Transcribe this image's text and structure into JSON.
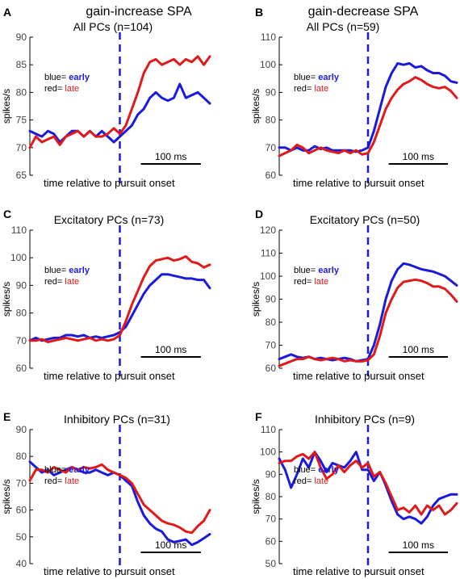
{
  "column_titles": [
    "gain-increase SPA",
    "gain-decrease SPA"
  ],
  "colors": {
    "early": "#1a1adc",
    "late": "#e01a1a",
    "axis": "#000000",
    "onset": "#1a1adc"
  },
  "chart_data": [
    {
      "panel": "A",
      "type": "line",
      "title": "All PCs (n=104)",
      "ylabel": "spikes/s",
      "xlabel": "time relative to pursuit onset",
      "ylim": [
        65,
        90
      ],
      "yticks": [
        65,
        70,
        75,
        80,
        85,
        90
      ],
      "xlim": [
        -300,
        300
      ],
      "scalebar": "100 ms",
      "legend": {
        "blue_prefix": "blue=",
        "blue_word": "early",
        "red_prefix": "red=",
        "red_word": "late"
      },
      "x": [
        -300,
        -280,
        -260,
        -240,
        -220,
        -200,
        -180,
        -160,
        -140,
        -120,
        -100,
        -80,
        -60,
        -40,
        -20,
        0,
        20,
        40,
        60,
        80,
        100,
        120,
        140,
        160,
        180,
        200,
        220,
        240,
        260,
        280,
        300
      ],
      "series": [
        {
          "key": "early",
          "values": [
            73,
            72.5,
            72,
            73,
            72.5,
            71,
            72,
            73,
            73,
            72,
            73,
            72,
            73,
            72,
            71,
            72,
            73,
            74,
            76,
            77,
            79,
            80,
            79,
            78.5,
            79,
            81.5,
            79,
            79.5,
            80,
            79,
            78
          ]
        },
        {
          "key": "late",
          "values": [
            70,
            72,
            71,
            71.5,
            72,
            70.5,
            72,
            72.5,
            73,
            72,
            73,
            72,
            72,
            72.5,
            73.5,
            72.5,
            74,
            77,
            80,
            83.5,
            85.5,
            86,
            85,
            85.5,
            86,
            85,
            86,
            85.5,
            86.5,
            85,
            86.5
          ]
        }
      ]
    },
    {
      "panel": "B",
      "type": "line",
      "title": "All PCs (n=59)",
      "ylabel": "spikes/s",
      "xlabel": "time relative to pursuit onset",
      "ylim": [
        60,
        110
      ],
      "yticks": [
        60,
        70,
        80,
        90,
        100,
        110
      ],
      "xlim": [
        -300,
        300
      ],
      "scalebar": "100 ms",
      "legend": {
        "blue_prefix": "blue=",
        "blue_word": "early",
        "red_prefix": "red=",
        "red_word": "late"
      },
      "x": [
        -300,
        -280,
        -260,
        -240,
        -220,
        -200,
        -180,
        -160,
        -140,
        -120,
        -100,
        -80,
        -60,
        -40,
        -20,
        0,
        20,
        40,
        60,
        80,
        100,
        120,
        140,
        160,
        180,
        200,
        220,
        240,
        260,
        280,
        300
      ],
      "series": [
        {
          "key": "early",
          "values": [
            70,
            70,
            69,
            70,
            69,
            69,
            70.5,
            69.5,
            70,
            69,
            69,
            69,
            69,
            68.5,
            69,
            70,
            76,
            84,
            92,
            97,
            100.5,
            100,
            100.5,
            99,
            99.5,
            98,
            97,
            97,
            96,
            94,
            93.5
          ]
        },
        {
          "key": "late",
          "values": [
            67,
            68,
            69,
            71,
            70,
            68,
            69,
            70,
            69,
            68.5,
            68,
            69,
            68,
            69,
            67.5,
            68,
            72,
            78,
            84,
            88,
            91,
            93,
            94,
            95.5,
            94.5,
            93,
            92,
            91.5,
            92,
            90.5,
            88
          ]
        }
      ]
    },
    {
      "panel": "C",
      "type": "line",
      "title": "Excitatory PCs (n=73)",
      "ylabel": "spikes/s",
      "xlabel": "time relative to pursuit onset",
      "ylim": [
        60,
        110
      ],
      "yticks": [
        60,
        70,
        80,
        90,
        100,
        110
      ],
      "xlim": [
        -300,
        300
      ],
      "scalebar": "100 ms",
      "legend": {
        "blue_prefix": "blue=",
        "blue_word": "early",
        "red_prefix": "red=",
        "red_word": "late"
      },
      "x": [
        -300,
        -280,
        -260,
        -240,
        -220,
        -200,
        -180,
        -160,
        -140,
        -120,
        -100,
        -80,
        -60,
        -40,
        -20,
        0,
        20,
        40,
        60,
        80,
        100,
        120,
        140,
        160,
        180,
        200,
        220,
        240,
        260,
        280,
        300
      ],
      "series": [
        {
          "key": "early",
          "values": [
            70,
            71,
            70,
            70.5,
            71,
            71,
            72,
            72,
            71.5,
            72,
            71,
            71.5,
            71,
            71.5,
            72,
            73,
            75,
            79,
            83,
            87,
            90,
            92,
            94,
            94,
            93.5,
            93,
            92.5,
            92.5,
            92,
            92,
            89
          ]
        },
        {
          "key": "late",
          "values": [
            70,
            70,
            70.5,
            69.5,
            70,
            70.5,
            71,
            70.5,
            70,
            70.5,
            71,
            70,
            70.5,
            70,
            70.5,
            72,
            77,
            83,
            88,
            93,
            97,
            99,
            99.5,
            100,
            99,
            99.5,
            100.5,
            98.5,
            98,
            96.5,
            97.5
          ]
        }
      ]
    },
    {
      "panel": "D",
      "type": "line",
      "title": "Excitatory PCs (n=50)",
      "ylabel": "spikes/s",
      "xlabel": "time relative to pursuit onset",
      "ylim": [
        60,
        120
      ],
      "yticks": [
        60,
        70,
        80,
        90,
        100,
        110,
        120
      ],
      "xlim": [
        -300,
        300
      ],
      "scalebar": "100 ms",
      "legend": {
        "blue_prefix": "blue=",
        "blue_word": "early",
        "red_prefix": "red=",
        "red_word": "late"
      },
      "x": [
        -300,
        -280,
        -260,
        -240,
        -220,
        -200,
        -180,
        -160,
        -140,
        -120,
        -100,
        -80,
        -60,
        -40,
        -20,
        0,
        20,
        40,
        60,
        80,
        100,
        120,
        140,
        160,
        180,
        200,
        220,
        240,
        260,
        280,
        300
      ],
      "series": [
        {
          "key": "early",
          "values": [
            64,
            65,
            66,
            65,
            64.5,
            65,
            64,
            64.5,
            64,
            63.5,
            64,
            64.5,
            64,
            63,
            63.5,
            64,
            70,
            79,
            90,
            98,
            103,
            105.5,
            105,
            104,
            103,
            102.5,
            102,
            101,
            100,
            98,
            96
          ]
        },
        {
          "key": "late",
          "values": [
            61,
            62,
            63,
            64,
            64,
            65,
            64,
            63.5,
            64,
            64.5,
            64,
            63,
            63.5,
            63,
            63,
            63.5,
            66,
            74,
            84,
            90,
            95,
            97.5,
            98,
            98.5,
            98,
            97,
            95.5,
            95.5,
            94.5,
            92,
            89
          ]
        }
      ]
    },
    {
      "panel": "E",
      "type": "line",
      "title": "Inhibitory PCs (n=31)",
      "ylabel": "spikes/s",
      "xlabel": "time relative to pursuit onset",
      "ylim": [
        40,
        90
      ],
      "yticks": [
        40,
        50,
        60,
        70,
        80,
        90
      ],
      "xlim": [
        -300,
        300
      ],
      "scalebar": "100 ms",
      "legend": {
        "blue_prefix": "blue=",
        "blue_word": "early",
        "red_prefix": "red=",
        "red_word": "late"
      },
      "x": [
        -300,
        -280,
        -260,
        -240,
        -220,
        -200,
        -180,
        -160,
        -140,
        -120,
        -100,
        -80,
        -60,
        -40,
        -20,
        0,
        20,
        40,
        60,
        80,
        100,
        120,
        140,
        160,
        180,
        200,
        220,
        240,
        260,
        280,
        300
      ],
      "series": [
        {
          "key": "early",
          "values": [
            78,
            76,
            74,
            75,
            73,
            74,
            75,
            76,
            75,
            74,
            74,
            75,
            74,
            73,
            74,
            73,
            71,
            69,
            63,
            58,
            55,
            53,
            52,
            49,
            48,
            48.5,
            49,
            47,
            48,
            49.5,
            51
          ]
        },
        {
          "key": "late",
          "values": [
            71,
            75,
            75,
            74,
            76,
            75,
            74,
            76,
            75,
            76,
            75.5,
            76,
            77,
            75,
            74,
            73,
            72,
            70,
            66,
            62,
            60,
            58,
            56,
            55,
            54.5,
            53.5,
            52,
            51.5,
            54,
            56,
            60
          ]
        }
      ]
    },
    {
      "panel": "F",
      "type": "line",
      "title": "Inhibitory PCs (n=9)",
      "ylabel": "spikes/s",
      "xlabel": "time relative to pursuit onset",
      "ylim": [
        50,
        110
      ],
      "yticks": [
        50,
        60,
        70,
        80,
        90,
        100,
        110
      ],
      "xlim": [
        -300,
        300
      ],
      "scalebar": "100 ms",
      "legend": {
        "blue_prefix": "blue=",
        "blue_word": "early",
        "red_prefix": "red=",
        "red_word": "late"
      },
      "x": [
        -300,
        -280,
        -260,
        -240,
        -220,
        -200,
        -180,
        -160,
        -140,
        -120,
        -100,
        -80,
        -60,
        -40,
        -20,
        0,
        20,
        40,
        60,
        80,
        100,
        120,
        140,
        160,
        180,
        200,
        220,
        240,
        260,
        280,
        300
      ],
      "series": [
        {
          "key": "early",
          "values": [
            97,
            92,
            84,
            90,
            97,
            93,
            100,
            96,
            91,
            95,
            94,
            93,
            96,
            100,
            92,
            92,
            87,
            91,
            85,
            78,
            72,
            70,
            71,
            70,
            68,
            71,
            76,
            79,
            80,
            81,
            81
          ]
        },
        {
          "key": "late",
          "values": [
            95,
            96,
            96,
            98,
            99,
            97,
            100,
            93,
            88,
            90,
            94,
            91,
            94,
            96,
            93,
            95,
            89,
            91,
            86,
            80,
            74,
            75,
            73,
            76,
            72,
            76,
            74,
            76,
            72,
            74,
            77
          ]
        }
      ]
    }
  ]
}
